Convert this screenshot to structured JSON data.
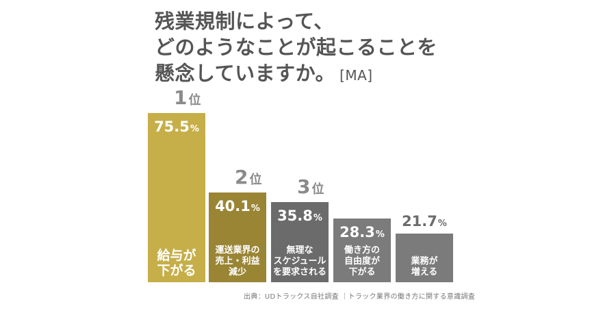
{
  "chart": {
    "title_lines": [
      "残業規制によって、",
      "どのようなことが起こることを",
      "懸念していますか。"
    ],
    "title_tag": "[MA]",
    "rank_suffix": "位",
    "source": "出典：UDトラックス自社調査 ｜トラック業界の働き方に関する意識調査"
  },
  "chart_data": {
    "type": "bar",
    "categories": [
      "給与が\n下がる",
      "運送業界の\n売上・利益\n減少",
      "無理な\nスケジュール\nを要求される",
      "働き方の\n自由度が\n下がる",
      "業務が\n増える"
    ],
    "values": [
      75.5,
      40.1,
      35.8,
      28.3,
      21.7
    ],
    "value_labels": [
      "75.5",
      "40.1",
      "35.8",
      "28.3",
      "21.7"
    ],
    "unit": "%",
    "ranks": [
      "1",
      "2",
      "3",
      "",
      ""
    ],
    "colors": [
      "#c6ae48",
      "#9a8535",
      "#6b6b6b",
      "#7b7b7b",
      "#7b7b7b"
    ],
    "ylim": [
      0,
      75.5
    ]
  }
}
